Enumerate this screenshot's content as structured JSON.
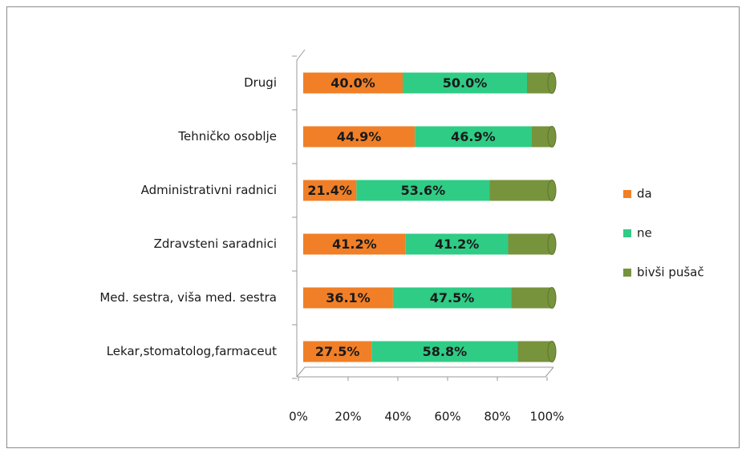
{
  "chart_data": {
    "type": "bar",
    "orientation": "horizontal",
    "stacked": true,
    "categories": [
      "Drugi",
      "Tehničko osoblje",
      "Administrativni radnici",
      "Zdravsteni saradnici",
      "Med. sestra, viša med. sestra",
      "Lekar,stomatolog,farmaceut"
    ],
    "series": [
      {
        "name": "da",
        "color": "#f07f27",
        "values": [
          40.0,
          44.9,
          21.4,
          41.2,
          36.1,
          27.5
        ],
        "value_labels": [
          "40.0%",
          "44.9%",
          "21.4%",
          "41.2%",
          "36.1%",
          "27.5%"
        ]
      },
      {
        "name": "ne",
        "color": "#2fcc86",
        "values": [
          50.0,
          46.9,
          53.6,
          41.2,
          47.5,
          58.8
        ],
        "value_labels": [
          "50.0%",
          "46.9%",
          "53.6%",
          "41.2%",
          "47.5%",
          "58.8%"
        ]
      },
      {
        "name": "bivši pušač",
        "color": "#77933c",
        "values": [
          10.0,
          8.2,
          25.0,
          17.6,
          16.4,
          13.7
        ]
      }
    ],
    "xlim": [
      0,
      100
    ],
    "xticks": [
      {
        "value": 0,
        "label": "0%"
      },
      {
        "value": 20,
        "label": "20%"
      },
      {
        "value": 40,
        "label": "40%"
      },
      {
        "value": 60,
        "label": "60%"
      },
      {
        "value": 80,
        "label": "80%"
      },
      {
        "value": 100,
        "label": "100%"
      }
    ],
    "legend": "right"
  }
}
